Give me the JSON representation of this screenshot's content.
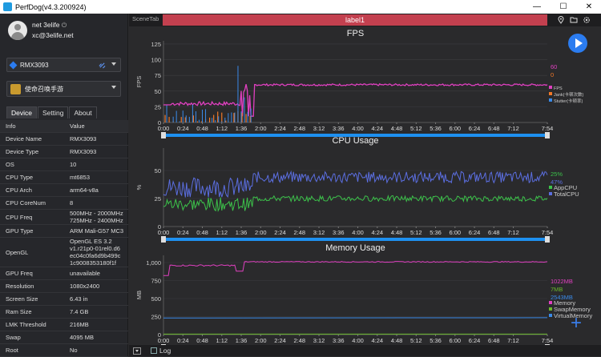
{
  "window": {
    "title": "PerfDog(v4.3.200924)",
    "minimize": "—",
    "maximize": "☐",
    "close": "✕"
  },
  "user": {
    "name": "net 3elife",
    "email": "xc@3elife.net",
    "power_icon": "⏻"
  },
  "device_select": {
    "value": "RMX3093"
  },
  "app_select": {
    "value": "使命召唤手游"
  },
  "tabs": [
    "Device",
    "Setting",
    "About"
  ],
  "table": {
    "headers": [
      "Info",
      "Value"
    ],
    "rows": [
      {
        "k": "Device Name",
        "v": "RMX3093"
      },
      {
        "k": "Device Type",
        "v": "RMX3093"
      },
      {
        "k": "OS",
        "v": "10"
      },
      {
        "k": "CPU Type",
        "v": "mt6853"
      },
      {
        "k": "CPU Arch",
        "v": "arm64-v8a"
      },
      {
        "k": "CPU CoreNum",
        "v": "8"
      },
      {
        "k": "CPU Freq",
        "v": "500MHz - 2000MHz\n725MHz - 2400MHz"
      },
      {
        "k": "GPU Type",
        "v": "ARM Mali-G57 MC3"
      },
      {
        "k": "OpenGL",
        "v": "OpenGL ES 3.2\nv1.r21p0-01rel0.d6\nec04c0fa6d9b499c\n1c9008353180f1f"
      },
      {
        "k": "GPU Freq",
        "v": "unavailable"
      },
      {
        "k": "Resolution",
        "v": "1080x2400"
      },
      {
        "k": "Screen Size",
        "v": "6.43 in"
      },
      {
        "k": "Ram Size",
        "v": "7.4 GB"
      },
      {
        "k": "LMK Threshold",
        "v": "216MB"
      },
      {
        "k": "Swap",
        "v": "4095 MB"
      },
      {
        "k": "Root",
        "v": "No"
      }
    ]
  },
  "scene": {
    "tab_label": "SceneTab",
    "label": "label1"
  },
  "log": {
    "label": "Log"
  },
  "time_ticks": [
    "0:00",
    "0:24",
    "0:48",
    "1:12",
    "1:36",
    "2:00",
    "2:24",
    "2:48",
    "3:12",
    "3:36",
    "4:00",
    "4:24",
    "4:48",
    "5:12",
    "5:36",
    "6:00",
    "6:24",
    "6:48",
    "7:12",
    "7:54"
  ],
  "colors": {
    "accent": "#2b7cf0",
    "label_bar": "#c3404f",
    "fps": "#e040c0",
    "jank": "#f07828",
    "stutter": "#3a8ae8",
    "appcpu": "#3cc24a",
    "totalcpu": "#5b6ee0",
    "memory": "#e040c0",
    "swap": "#6ab82c",
    "virtual": "#3a8ae8"
  },
  "chart_data": [
    {
      "type": "line",
      "title": "FPS",
      "ylabel": "FPS",
      "ylim": [
        0,
        130
      ],
      "yticks": [
        0,
        25,
        50,
        75,
        100,
        125
      ],
      "xlim": [
        "0:00",
        "7:54"
      ],
      "series": [
        {
          "name": "FPS",
          "value_label": "60",
          "color": "#e040c0"
        },
        {
          "name": "Jank(卡顿次数)",
          "value_label": "0",
          "color": "#f07828"
        },
        {
          "name": "Stutter(卡顿率)",
          "value_label": "",
          "color": "#3a8ae8"
        }
      ]
    },
    {
      "type": "line",
      "title": "CPU Usage",
      "ylabel": "%",
      "ylim": [
        0,
        70
      ],
      "yticks": [
        0,
        25,
        50
      ],
      "xlim": [
        "0:00",
        "7:54"
      ],
      "series": [
        {
          "name": "AppCPU",
          "value_label": "25%",
          "color": "#3cc24a"
        },
        {
          "name": "TotalCPU",
          "value_label": "47%",
          "color": "#5b6ee0"
        }
      ]
    },
    {
      "type": "line",
      "title": "Memory Usage",
      "ylabel": "MB",
      "ylim": [
        0,
        1100
      ],
      "yticks": [
        0,
        250,
        500,
        750,
        1000
      ],
      "ytick_labels": [
        "0",
        "250",
        "500",
        "750",
        "1,000"
      ],
      "xlim": [
        "0:00",
        "7:54"
      ],
      "series": [
        {
          "name": "Memory",
          "value_label": "1022MB",
          "color": "#e040c0"
        },
        {
          "name": "SwapMemory",
          "value_label": "7MB",
          "color": "#6ab82c"
        },
        {
          "name": "VirtualMemory",
          "value_label": "2543MB",
          "color": "#3a8ae8"
        }
      ]
    }
  ]
}
